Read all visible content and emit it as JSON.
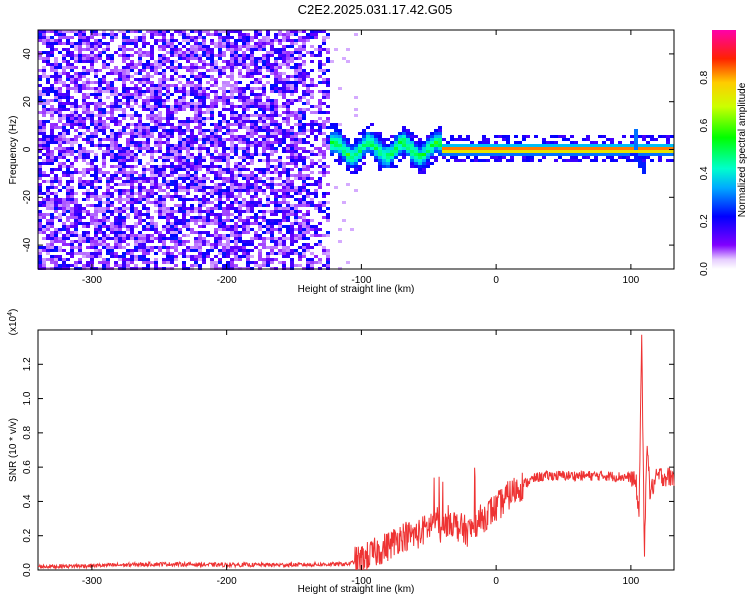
{
  "title": "C2E2.2025.031.17.42.G05",
  "chart_data": [
    {
      "type": "heatmap",
      "xlabel": "Height of straight line (km)",
      "ylabel": "Frequency (Hz)",
      "xlim": [
        -340,
        132
      ],
      "ylim": [
        -50,
        50
      ],
      "xticks": [
        -300,
        -200,
        -100,
        0,
        100
      ],
      "yticks": [
        -40,
        -20,
        0,
        20,
        40
      ],
      "colorbar": {
        "label": "Normalized spectral amplitude",
        "range": [
          0,
          1
        ],
        "ticks": [
          0.0,
          0.2,
          0.4,
          0.6,
          0.8
        ],
        "tick_labels": [
          "0.0",
          "0.2",
          "0.4",
          "0.6",
          "0.8"
        ]
      },
      "regions": [
        {
          "x_range": [
            -340,
            -122
          ],
          "description": "broadband noise",
          "amplitude": [
            0.05,
            0.25
          ]
        },
        {
          "x_range": [
            -122,
            -40
          ],
          "center_hz": 0,
          "amplitude": [
            0.2,
            0.6
          ]
        },
        {
          "x_range": [
            -40,
            132
          ],
          "center_hz": 0,
          "amplitude": [
            0.5,
            1.0
          ]
        },
        {
          "x_range": [
            100,
            112
          ],
          "center_hz": -5,
          "amplitude": [
            0.2,
            0.4
          ]
        }
      ]
    },
    {
      "type": "line",
      "xlabel": "Height of straight line (km)",
      "ylabel": "SNR (10 * v/v)",
      "scale_label": "(x10",
      "scale_exp": "4",
      "scale_close": ")",
      "xlim": [
        -340,
        132
      ],
      "ylim": [
        0,
        1.4
      ],
      "xticks": [
        -300,
        -200,
        -100,
        0,
        100
      ],
      "yticks": [
        0.0,
        0.2,
        0.4,
        0.6,
        0.8,
        1.0,
        1.2
      ],
      "ytick_labels": [
        "0.0",
        "0.2",
        "0.4",
        "0.6",
        "0.8",
        "1.0",
        "1.2"
      ],
      "color": "#ee3333",
      "series": [
        {
          "x": [
            -340,
            -300,
            -250,
            -200,
            -150,
            -110,
            -100,
            -90,
            -80,
            -70,
            -60,
            -50,
            -45,
            -40,
            -35,
            -30,
            -25,
            -20,
            -15,
            -10,
            -5,
            0,
            5,
            10,
            20,
            30,
            40,
            60,
            80,
            100,
            104,
            106,
            108,
            110,
            112,
            114,
            120,
            132
          ],
          "y": [
            0.02,
            0.025,
            0.035,
            0.03,
            0.03,
            0.035,
            0.06,
            0.1,
            0.14,
            0.2,
            0.2,
            0.25,
            0.3,
            0.22,
            0.3,
            0.26,
            0.24,
            0.22,
            0.28,
            0.3,
            0.34,
            0.36,
            0.4,
            0.44,
            0.5,
            0.54,
            0.55,
            0.55,
            0.55,
            0.54,
            0.5,
            0.3,
            1.38,
            0.05,
            0.8,
            0.45,
            0.55,
            0.54
          ]
        }
      ]
    }
  ]
}
